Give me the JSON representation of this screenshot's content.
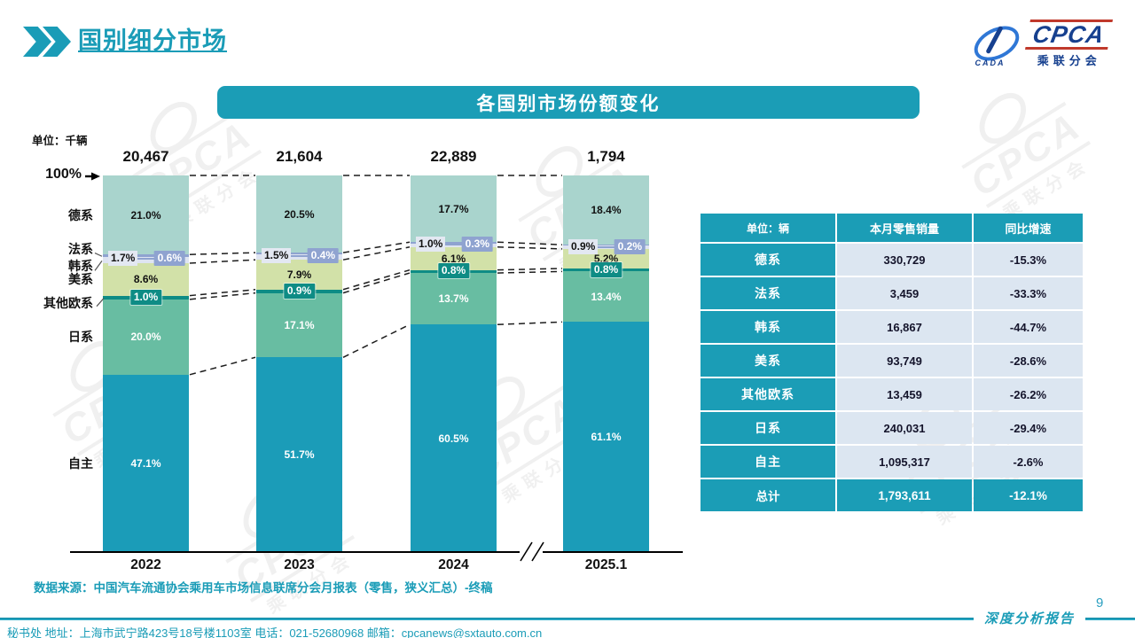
{
  "page": {
    "title": "国别细分市场",
    "page_number": "9",
    "report_label": "深度分析报告",
    "source": "数据来源：中国汽车流通协会乘用车市场信息联席分会月报表（零售，狭义汇总）-终稿",
    "footer": "秘书处  地址：上海市武宁路423号18号楼1103室  电话：021-52680968   邮箱：cpcanews@sxtauto.com.cn",
    "watermark_text": "CPCA",
    "watermark_subtext": "乘联分会"
  },
  "logo": {
    "cpca": "CPCA",
    "sub": "乘联分会",
    "cada": "CADA"
  },
  "chart": {
    "banner_title": "各国别市场份额变化",
    "unit_label": "单位：千辆",
    "axis_100_label": "100%"
  },
  "chart_data": {
    "type": "bar",
    "stacked": true,
    "percent_stack": true,
    "title": "各国别市场份额变化",
    "unit": "千辆",
    "categories": [
      "2022",
      "2023",
      "2024",
      "2025.1"
    ],
    "totals": [
      "20,467",
      "21,604",
      "22,889",
      "1,794"
    ],
    "ylim": [
      0,
      100
    ],
    "legend_position": "left-of-first-bar",
    "grid": false,
    "series": [
      {
        "name": "德系",
        "values": [
          21.0,
          20.5,
          17.7,
          18.4
        ],
        "color": "#a9d4cd",
        "label_style": "dark"
      },
      {
        "name": "法系",
        "values": [
          0.6,
          0.4,
          0.3,
          0.2
        ],
        "color": "#8fa3d0",
        "label_style": "badge-blue"
      },
      {
        "name": "韩系",
        "values": [
          1.7,
          1.5,
          1.0,
          0.9
        ],
        "color": "#dee4f1",
        "label_style": "chip"
      },
      {
        "name": "美系",
        "values": [
          8.6,
          7.9,
          6.1,
          5.2
        ],
        "color": "#d2e1a8",
        "label_style": "dark"
      },
      {
        "name": "其他欧系",
        "values": [
          1.0,
          0.9,
          0.8,
          0.8
        ],
        "color": "#0e8c85",
        "label_style": "badge-teal"
      },
      {
        "name": "日系",
        "values": [
          20.0,
          17.1,
          13.7,
          13.4
        ],
        "color": "#68bda2",
        "label_style": "light"
      },
      {
        "name": "自主",
        "values": [
          47.1,
          51.7,
          60.5,
          61.1
        ],
        "color": "#1b9cb8",
        "label_style": "light"
      }
    ]
  },
  "table": {
    "headers": [
      "单位：辆",
      "本月零售销量",
      "同比增速"
    ],
    "rows": [
      [
        "德系",
        "330,729",
        "-15.3%"
      ],
      [
        "法系",
        "3,459",
        "-33.3%"
      ],
      [
        "韩系",
        "16,867",
        "-44.7%"
      ],
      [
        "美系",
        "93,749",
        "-28.6%"
      ],
      [
        "其他欧系",
        "13,459",
        "-26.2%"
      ],
      [
        "日系",
        "240,031",
        "-29.4%"
      ],
      [
        "自主",
        "1,095,317",
        "-2.6%"
      ]
    ],
    "total_row": [
      "总计",
      "1,793,611",
      "-12.1%"
    ]
  },
  "colors": {
    "accent_teal": "#1b9db6",
    "table_value_bg": "#dce6f1",
    "badge_blue": "#8fa3d0",
    "badge_teal": "#0e8c85",
    "axis_black": "#111111"
  }
}
